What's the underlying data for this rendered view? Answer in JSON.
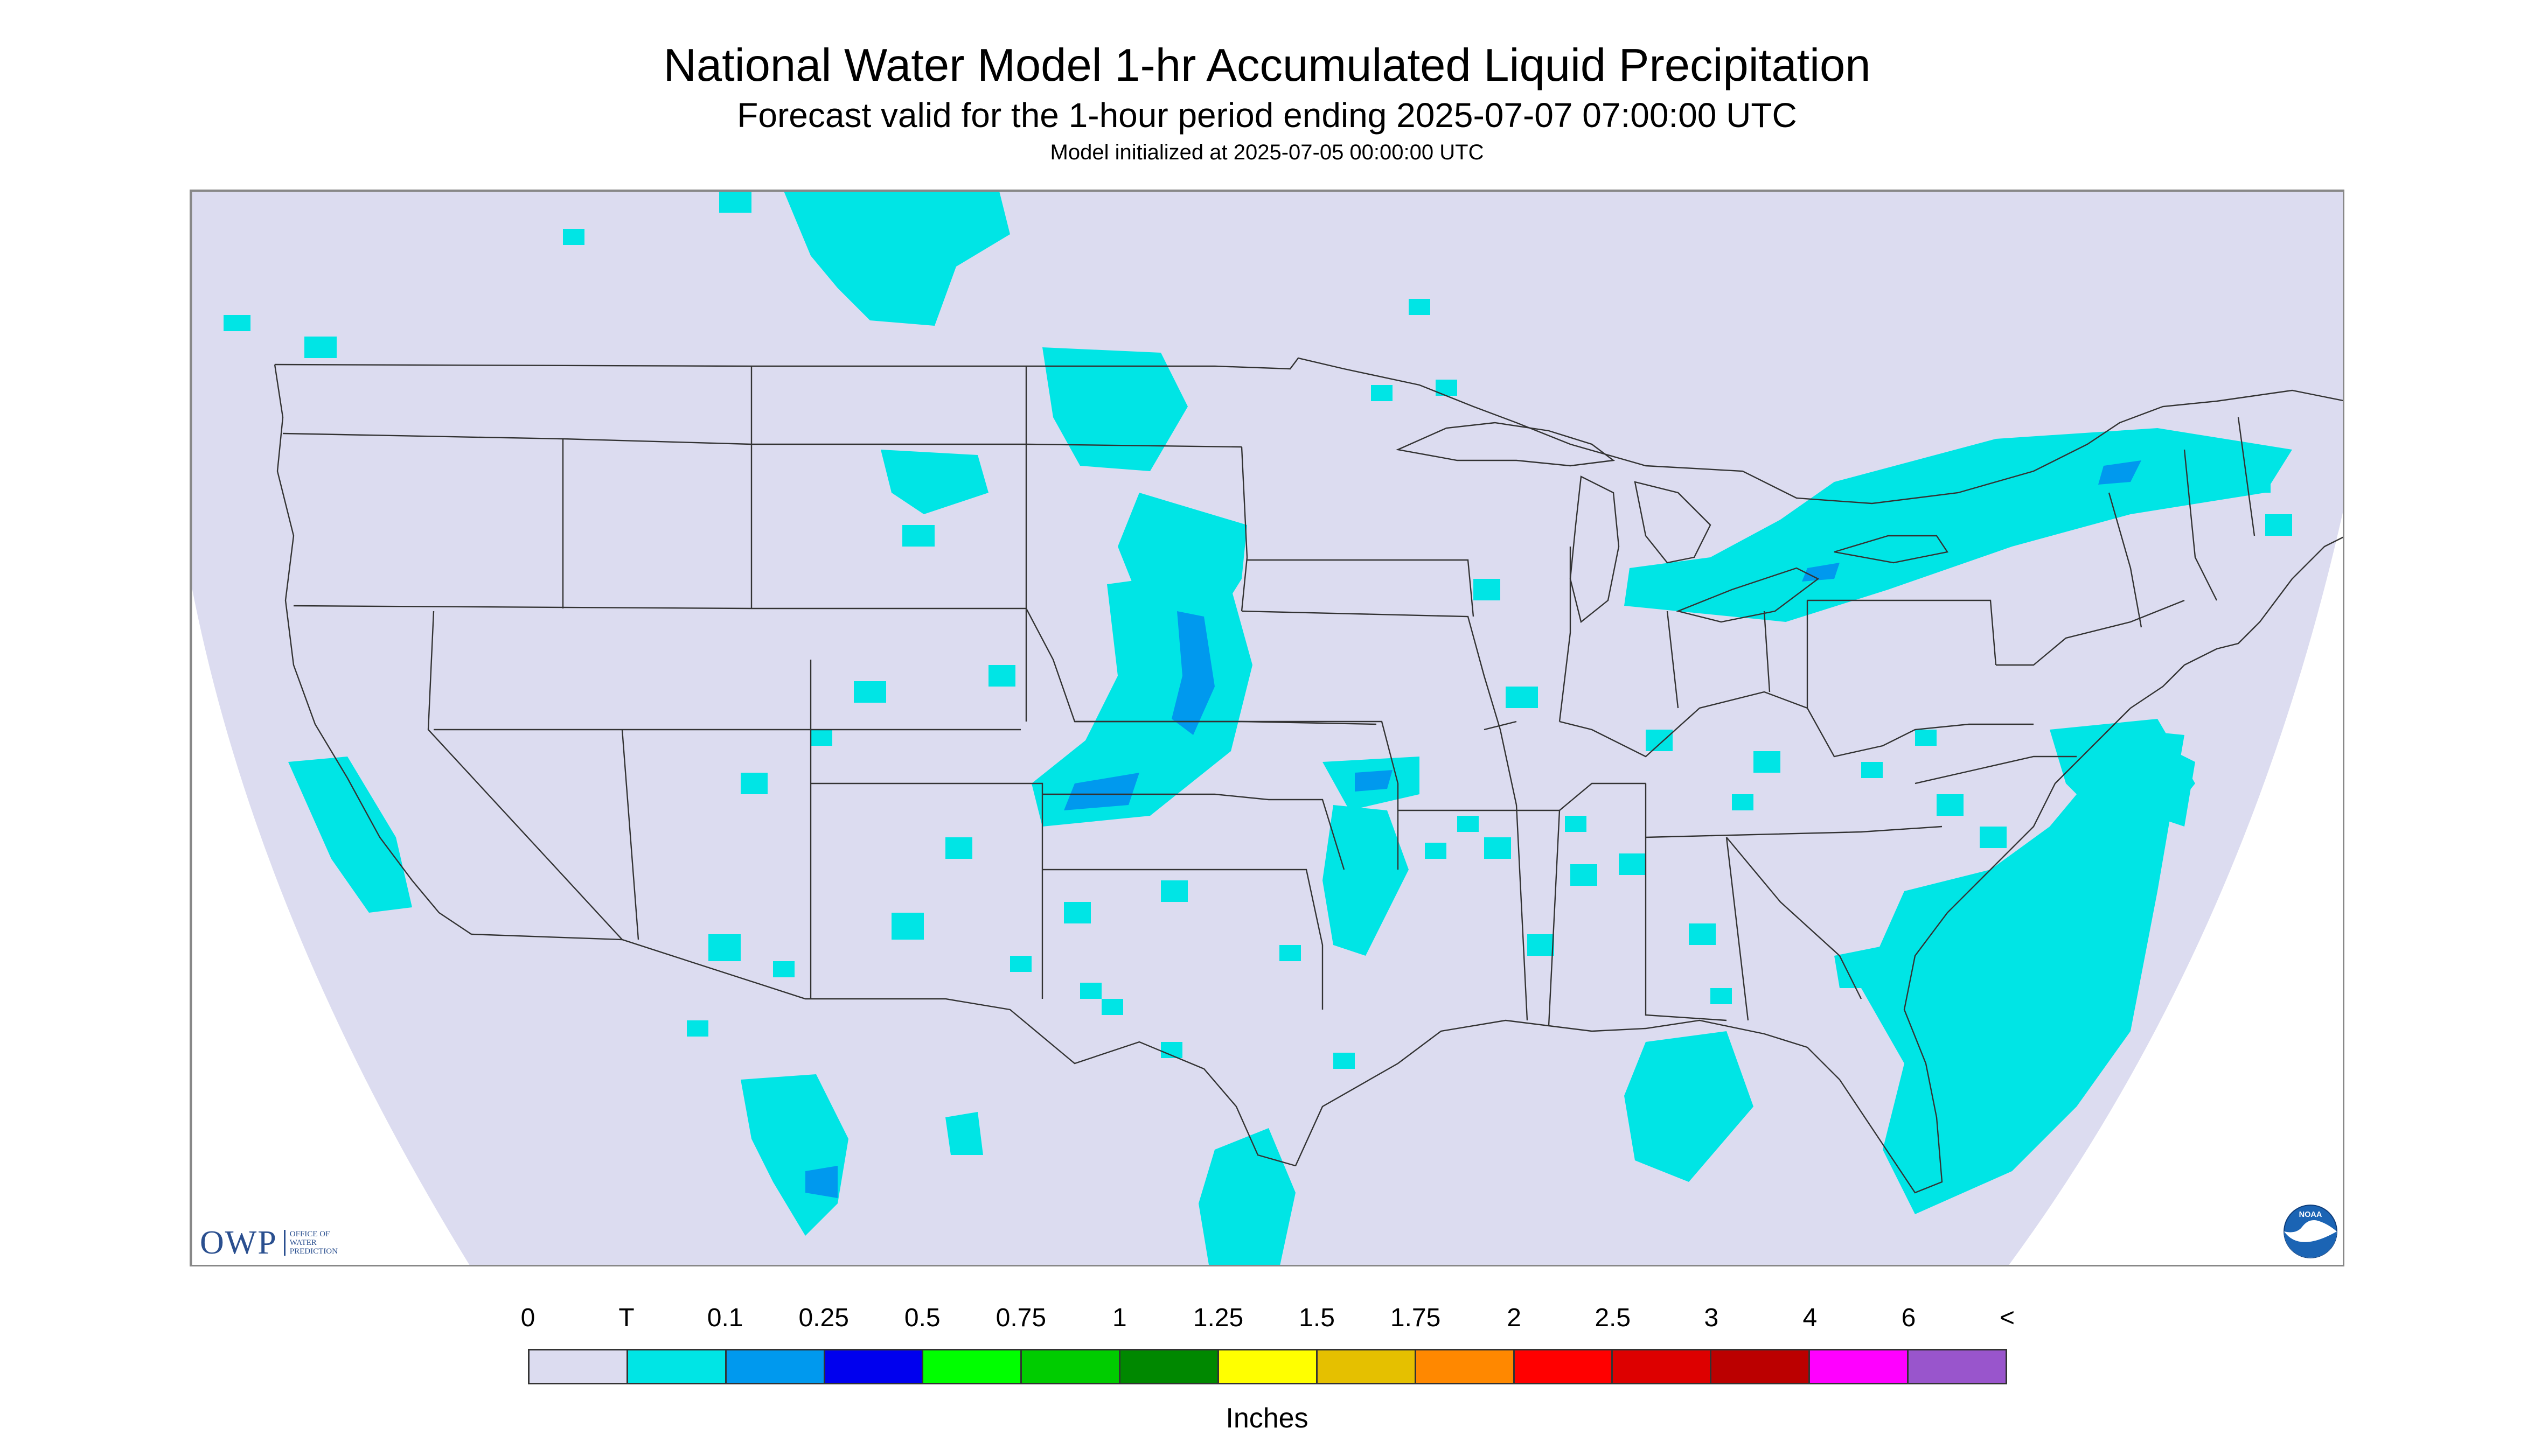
{
  "header": {
    "title": "National Water Model 1-hr Accumulated Liquid Precipitation",
    "subtitle": "Forecast valid for the 1-hour period ending 2025-07-07 07:00:00 UTC",
    "init_text": "Model initialized at 2025-07-05 00:00:00 UTC"
  },
  "logos": {
    "owp_text": "OWP",
    "owp_subtext": "OFFICE OF\nWATER\nPREDICTION",
    "noaa_text": "NOAA"
  },
  "map": {
    "background_color": "#dcdcf0",
    "outside_color": "#ffffff",
    "region": "CONUS",
    "precip_color_trace": "#00e5e5",
    "precip_color_01": "#0099ee"
  },
  "legend": {
    "labels": [
      "0",
      "T",
      "0.1",
      "0.25",
      "0.5",
      "0.75",
      "1",
      "1.25",
      "1.5",
      "1.75",
      "2",
      "2.5",
      "3",
      "4",
      "6",
      "<"
    ],
    "colors": [
      "#dcdcf0",
      "#00e5e5",
      "#0099ee",
      "#0000ee",
      "#00ff00",
      "#00cc00",
      "#008800",
      "#ffff00",
      "#e5c000",
      "#ff8800",
      "#ff0000",
      "#dd0000",
      "#bb0000",
      "#ff00ff",
      "#9955cc"
    ],
    "units": "Inches"
  }
}
